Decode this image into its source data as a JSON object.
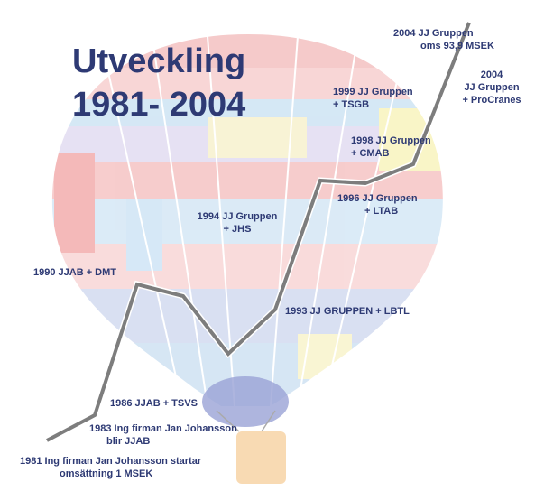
{
  "title": [
    "Utveckling",
    "1981- 2004"
  ],
  "milestones": [
    {
      "lines": [
        "2004 JJ Gruppen",
        "oms 93,9 MSEK"
      ]
    },
    {
      "lines": [
        "2004",
        "JJ Gruppen",
        "+ ProCranes"
      ]
    },
    {
      "lines": [
        "1999 JJ Gruppen",
        "+ TSGB"
      ]
    },
    {
      "lines": [
        "1998 JJ Gruppen",
        "+ CMAB"
      ]
    },
    {
      "lines": [
        "1996 JJ Gruppen",
        "+ LTAB"
      ]
    },
    {
      "lines": [
        "1994 JJ Gruppen",
        "+ JHS"
      ]
    },
    {
      "lines": [
        "1990 JJAB + DMT"
      ]
    },
    {
      "lines": [
        "1993 JJ GRUPPEN + LBTL"
      ]
    },
    {
      "lines": [
        "1986 JJAB + TSVS"
      ]
    },
    {
      "lines": [
        "1983 Ing firman Jan Johansson",
        "blir JJAB"
      ]
    },
    {
      "lines": [
        "1981 Ing firman Jan Johansson startar",
        "omsättning 1 MSEK"
      ]
    }
  ]
}
